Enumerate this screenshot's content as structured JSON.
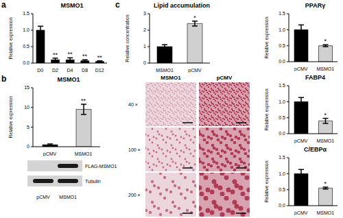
{
  "chart_data": [
    {
      "type": "bar",
      "title": "MSMO1",
      "ylabel": "Relative expression",
      "categories": [
        "D0",
        "D2",
        "D4",
        "D8",
        "D12"
      ],
      "values": [
        1.0,
        0.1,
        0.1,
        0.07,
        0.05
      ],
      "errors": [
        0.12,
        0.05,
        0.06,
        0.03,
        0.02
      ],
      "colors": [
        "#000000",
        "#000000",
        "#000000",
        "#000000",
        "#000000"
      ],
      "ylim": [
        0,
        1.5
      ],
      "yticks": [
        {
          "value": 0,
          "label": "0.0"
        },
        {
          "value": 0.5,
          "label": "0.5"
        },
        {
          "value": 1,
          "label": "1.0"
        },
        {
          "value": 1.5,
          "label": "1.5"
        }
      ],
      "annotations": [
        {
          "category": "D2",
          "text": "**"
        },
        {
          "category": "D4",
          "text": "**"
        },
        {
          "category": "D8",
          "text": "**"
        },
        {
          "category": "D12",
          "text": "**"
        }
      ]
    },
    {
      "type": "bar",
      "title": "MSMO1",
      "ylabel": "Relative expression",
      "categories": [
        "pCMV",
        "MSMO1"
      ],
      "values": [
        0.5,
        9.5
      ],
      "errors": [
        0.2,
        1.3
      ],
      "colors": [
        "#000000",
        "#d0d0d0"
      ],
      "ylim": [
        0,
        15
      ],
      "yticks": [
        0,
        5,
        10,
        15
      ],
      "annotations": [
        {
          "category": "MSMO1",
          "text": "**"
        }
      ]
    },
    {
      "type": "bar",
      "title": "Lipid accumulation",
      "ylabel": "Relative concentration",
      "categories": [
        "MSMO1",
        "pCMV"
      ],
      "values": [
        1.0,
        2.4
      ],
      "errors": [
        0.12,
        0.15
      ],
      "colors": [
        "#000000",
        "#d0d0d0"
      ],
      "ylim": [
        0,
        3
      ],
      "yticks": [
        0,
        1,
        2,
        3
      ],
      "annotations": [
        {
          "category": "pCMV",
          "text": "*"
        }
      ]
    },
    {
      "type": "bar",
      "title": "PPARγ",
      "ylabel": "Relative expression",
      "categories": [
        "pCMV",
        "MSMO1"
      ],
      "values": [
        1.0,
        0.5
      ],
      "errors": [
        0.15,
        0.03
      ],
      "colors": [
        "#000000",
        "#d0d0d0"
      ],
      "ylim": [
        0,
        1.5
      ],
      "yticks": [
        {
          "value": 0,
          "label": "0.0"
        },
        {
          "value": 0.5,
          "label": "0.5"
        },
        {
          "value": 1,
          "label": "1.0"
        },
        {
          "value": 1.5,
          "label": "1.5"
        }
      ],
      "annotations": [
        {
          "category": "MSMO1",
          "text": "*"
        }
      ]
    },
    {
      "type": "bar",
      "title": "FABP4",
      "ylabel": "Relative expression",
      "categories": [
        "pCMV",
        "MSMO1"
      ],
      "values": [
        1.0,
        0.4
      ],
      "errors": [
        0.13,
        0.08
      ],
      "colors": [
        "#000000",
        "#d0d0d0"
      ],
      "ylim": [
        0,
        1.5
      ],
      "yticks": [
        {
          "value": 0,
          "label": "0.0"
        },
        {
          "value": 0.5,
          "label": "0.5"
        },
        {
          "value": 1,
          "label": "1.0"
        },
        {
          "value": 1.5,
          "label": "1.5"
        }
      ],
      "annotations": [
        {
          "category": "MSMO1",
          "text": "*"
        }
      ]
    },
    {
      "type": "bar",
      "title": "C/EBPα",
      "ylabel": "Relative expression",
      "categories": [
        "pCMV",
        "MSMO1"
      ],
      "values": [
        1.0,
        0.55
      ],
      "errors": [
        0.13,
        0.03
      ],
      "colors": [
        "#000000",
        "#d0d0d0"
      ],
      "ylim": [
        0,
        1.5
      ],
      "yticks": [
        {
          "value": 0,
          "label": "0.0"
        },
        {
          "value": 0.5,
          "label": "0.5"
        },
        {
          "value": 1,
          "label": "1.0"
        },
        {
          "value": 1.5,
          "label": "1.5"
        }
      ],
      "annotations": [
        {
          "category": "MSMO1",
          "text": "*"
        }
      ]
    }
  ],
  "panel_labels": [
    "a",
    "b",
    "c"
  ],
  "blot": {
    "rows": [
      "FLAG-MSMO1",
      "Tubulin"
    ],
    "lanes": [
      "pCMV",
      "MSMO1"
    ]
  },
  "images": {
    "columns": [
      "MSMO1",
      "pCMV"
    ],
    "rows": [
      "40 ×",
      "100 ×",
      "200 ×"
    ]
  }
}
